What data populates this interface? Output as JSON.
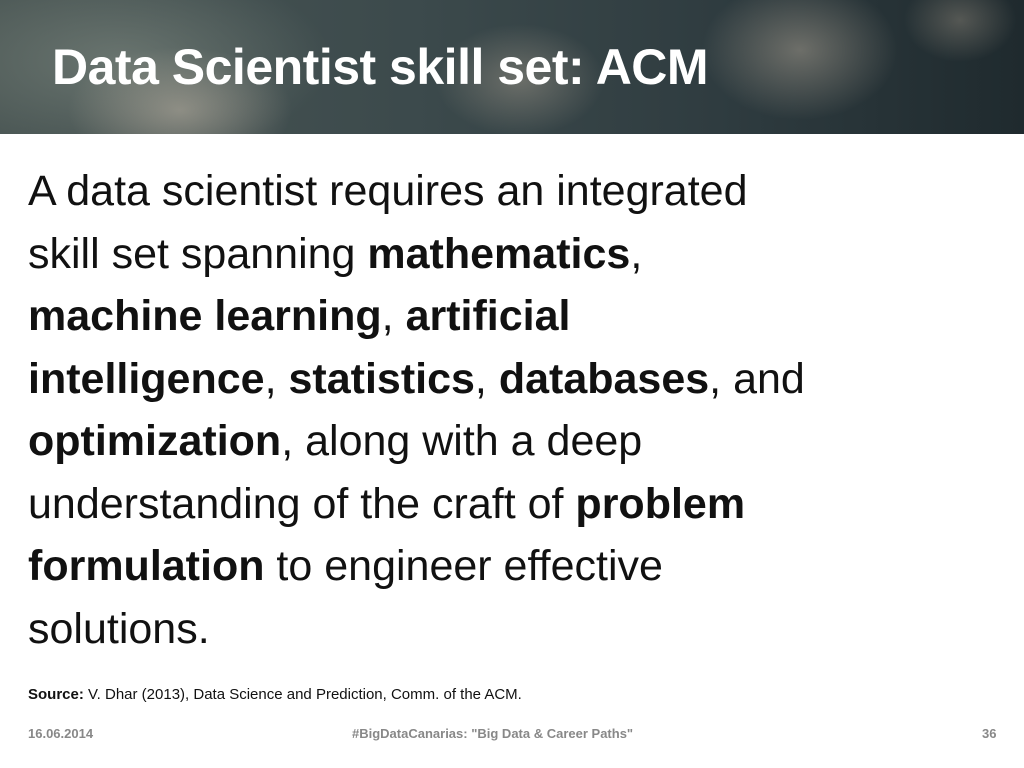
{
  "title": "Data Scientist skill set: ACM",
  "body_lines": [
    [
      {
        "t": "A data scientist requires an integrated",
        "b": false
      }
    ],
    [
      {
        "t": "skill set spanning ",
        "b": false
      },
      {
        "t": "mathematics",
        "b": true
      },
      {
        "t": ",",
        "b": false
      }
    ],
    [
      {
        "t": "machine learning",
        "b": true
      },
      {
        "t": ", ",
        "b": false
      },
      {
        "t": "artificial",
        "b": true
      }
    ],
    [
      {
        "t": "intelligence",
        "b": true
      },
      {
        "t": ", ",
        "b": false
      },
      {
        "t": "statistics",
        "b": true
      },
      {
        "t": ", ",
        "b": false
      },
      {
        "t": "databases",
        "b": true
      },
      {
        "t": ", and",
        "b": false
      }
    ],
    [
      {
        "t": "optimization",
        "b": true
      },
      {
        "t": ", along with a deep",
        "b": false
      }
    ],
    [
      {
        "t": "understanding of the craft of ",
        "b": false
      },
      {
        "t": "problem",
        "b": true
      }
    ],
    [
      {
        "t": "formulation",
        "b": true
      },
      {
        "t": " to engineer effective",
        "b": false
      }
    ],
    [
      {
        "t": "solutions.",
        "b": false
      }
    ]
  ],
  "source": {
    "label": "Source:",
    "text": " V. Dhar (2013), Data Science and Prediction, Comm. of the ACM."
  },
  "footer": {
    "date": "16.06.2014",
    "event": "#BigDataCanarias: \"Big Data & Career Paths\"",
    "page": "36"
  }
}
